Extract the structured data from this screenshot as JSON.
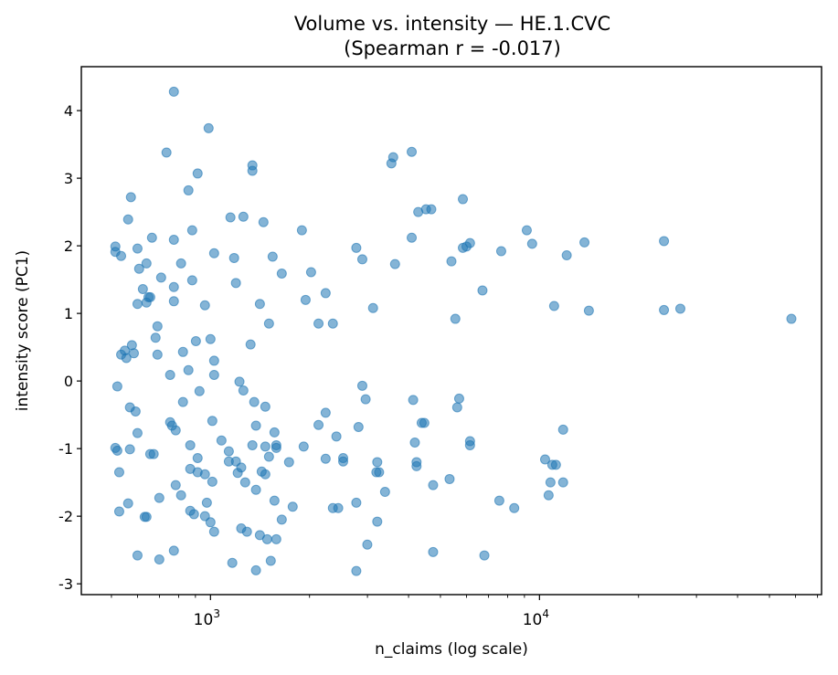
{
  "chart_data": {
    "type": "scatter",
    "title": "Volume vs. intensity — HE.1.CVC",
    "subtitle": "(Spearman r = -0.017)",
    "xlabel": "n_claims (log scale)",
    "ylabel": "intensity score (PC1)",
    "xscale": "log",
    "xlim": [
      405,
      72000
    ],
    "ylim": [
      -3.16,
      4.65
    ],
    "xticks": [
      {
        "value": 1000,
        "base": "10",
        "exp": "3"
      },
      {
        "value": 10000,
        "base": "10",
        "exp": "4"
      }
    ],
    "yticks": [
      -3,
      -2,
      -1,
      0,
      1,
      2,
      3,
      4
    ],
    "grid": false,
    "marker_color": "#1f77b4",
    "marker_alpha": 0.55,
    "points": [
      [
        514,
        1.99
      ],
      [
        514,
        1.91
      ],
      [
        535,
        1.85
      ],
      [
        514,
        -0.99
      ],
      [
        521,
        -1.03
      ],
      [
        528,
        -1.35
      ],
      [
        521,
        -0.08
      ],
      [
        528,
        -1.93
      ],
      [
        535,
        0.39
      ],
      [
        549,
        0.45
      ],
      [
        555,
        0.34
      ],
      [
        577,
        0.53
      ],
      [
        569,
        -0.39
      ],
      [
        569,
        -1.01
      ],
      [
        562,
        -1.81
      ],
      [
        573,
        2.72
      ],
      [
        562,
        2.39
      ],
      [
        585,
        0.41
      ],
      [
        592,
        -0.45
      ],
      [
        600,
        1.96
      ],
      [
        607,
        1.66
      ],
      [
        600,
        -0.77
      ],
      [
        600,
        -2.58
      ],
      [
        600,
        1.14
      ],
      [
        623,
        1.36
      ],
      [
        639,
        1.16
      ],
      [
        639,
        1.74
      ],
      [
        648,
        1.24
      ],
      [
        656,
        1.24
      ],
      [
        631,
        -2.01
      ],
      [
        639,
        -2.01
      ],
      [
        664,
        2.12
      ],
      [
        656,
        -1.08
      ],
      [
        672,
        -1.08
      ],
      [
        681,
        0.64
      ],
      [
        690,
        0.81
      ],
      [
        690,
        0.39
      ],
      [
        708,
        1.53
      ],
      [
        699,
        -1.73
      ],
      [
        699,
        -2.64
      ],
      [
        735,
        3.38
      ],
      [
        754,
        0.09
      ],
      [
        754,
        -0.61
      ],
      [
        764,
        -0.66
      ],
      [
        784,
        -0.73
      ],
      [
        774,
        1.18
      ],
      [
        774,
        2.09
      ],
      [
        774,
        4.28
      ],
      [
        774,
        -2.51
      ],
      [
        774,
        1.39
      ],
      [
        784,
        -1.54
      ],
      [
        814,
        1.74
      ],
      [
        814,
        -1.69
      ],
      [
        825,
        -0.31
      ],
      [
        825,
        0.43
      ],
      [
        857,
        0.16
      ],
      [
        857,
        2.82
      ],
      [
        868,
        -0.95
      ],
      [
        868,
        -1.3
      ],
      [
        880,
        2.23
      ],
      [
        880,
        1.49
      ],
      [
        868,
        -1.92
      ],
      [
        891,
        -1.97
      ],
      [
        903,
        0.59
      ],
      [
        914,
        3.07
      ],
      [
        914,
        -1.14
      ],
      [
        926,
        -0.15
      ],
      [
        914,
        -1.35
      ],
      [
        962,
        1.12
      ],
      [
        962,
        -1.38
      ],
      [
        962,
        -2.0
      ],
      [
        1000,
        -2.09
      ],
      [
        975,
        -1.8
      ],
      [
        1000,
        0.62
      ],
      [
        1013,
        -0.59
      ],
      [
        1026,
        1.89
      ],
      [
        1013,
        -1.49
      ],
      [
        1026,
        0.3
      ],
      [
        1026,
        0.09
      ],
      [
        1026,
        -2.23
      ],
      [
        987,
        3.74
      ],
      [
        1080,
        -0.88
      ],
      [
        1137,
        -1.19
      ],
      [
        1137,
        -1.04
      ],
      [
        1150,
        2.42
      ],
      [
        1180,
        1.82
      ],
      [
        1195,
        1.45
      ],
      [
        1165,
        -2.69
      ],
      [
        1195,
        -1.19
      ],
      [
        1210,
        -1.36
      ],
      [
        1225,
        -0.01
      ],
      [
        1240,
        -1.28
      ],
      [
        1259,
        -0.14
      ],
      [
        1240,
        -2.18
      ],
      [
        1259,
        2.43
      ],
      [
        1275,
        -1.5
      ],
      [
        1291,
        -2.23
      ],
      [
        1324,
        0.54
      ],
      [
        1341,
        3.19
      ],
      [
        1341,
        3.11
      ],
      [
        1341,
        -0.95
      ],
      [
        1358,
        -0.31
      ],
      [
        1375,
        -0.66
      ],
      [
        1375,
        -1.61
      ],
      [
        1375,
        -2.8
      ],
      [
        1413,
        -2.28
      ],
      [
        1413,
        1.14
      ],
      [
        1449,
        2.35
      ],
      [
        1468,
        -1.38
      ],
      [
        1431,
        -1.34
      ],
      [
        1468,
        -0.38
      ],
      [
        1468,
        -0.97
      ],
      [
        1487,
        -2.34
      ],
      [
        1506,
        0.85
      ],
      [
        1506,
        -1.12
      ],
      [
        1525,
        -2.66
      ],
      [
        1545,
        1.84
      ],
      [
        1565,
        -0.76
      ],
      [
        1585,
        -0.95
      ],
      [
        1585,
        -0.99
      ],
      [
        1565,
        -1.77
      ],
      [
        1585,
        -2.34
      ],
      [
        1647,
        1.59
      ],
      [
        1647,
        -2.05
      ],
      [
        1733,
        -1.2
      ],
      [
        1778,
        -1.86
      ],
      [
        1896,
        2.23
      ],
      [
        1920,
        -0.97
      ],
      [
        1946,
        1.2
      ],
      [
        2022,
        1.61
      ],
      [
        2130,
        0.85
      ],
      [
        2130,
        -0.65
      ],
      [
        2239,
        -0.47
      ],
      [
        2239,
        1.3
      ],
      [
        2239,
        -1.15
      ],
      [
        2355,
        0.85
      ],
      [
        2355,
        -1.88
      ],
      [
        2414,
        -0.82
      ],
      [
        2445,
        -1.88
      ],
      [
        2531,
        -1.19
      ],
      [
        2531,
        -1.14
      ],
      [
        2775,
        1.97
      ],
      [
        2775,
        -1.8
      ],
      [
        2894,
        1.8
      ],
      [
        2894,
        -0.07
      ],
      [
        2962,
        -0.27
      ],
      [
        2818,
        -0.68
      ],
      [
        2775,
        -2.81
      ],
      [
        2997,
        -2.42
      ],
      [
        3120,
        1.08
      ],
      [
        3193,
        -1.35
      ],
      [
        3213,
        -1.2
      ],
      [
        3213,
        -2.08
      ],
      [
        3255,
        -1.35
      ],
      [
        3393,
        -1.64
      ],
      [
        3548,
        3.22
      ],
      [
        3593,
        3.31
      ],
      [
        3639,
        1.73
      ],
      [
        4089,
        3.39
      ],
      [
        4089,
        2.12
      ],
      [
        4131,
        -0.28
      ],
      [
        4180,
        -0.91
      ],
      [
        4230,
        -1.2
      ],
      [
        4230,
        -1.26
      ],
      [
        4280,
        2.5
      ],
      [
        4385,
        -0.62
      ],
      [
        4467,
        -0.62
      ],
      [
        4520,
        2.54
      ],
      [
        4690,
        2.54
      ],
      [
        4750,
        -1.54
      ],
      [
        4750,
        -2.53
      ],
      [
        5330,
        -1.45
      ],
      [
        5400,
        1.77
      ],
      [
        5550,
        0.92
      ],
      [
        5700,
        -0.26
      ],
      [
        5623,
        -0.39
      ],
      [
        5850,
        2.69
      ],
      [
        5850,
        1.97
      ],
      [
        6000,
        1.99
      ],
      [
        6150,
        2.04
      ],
      [
        6150,
        -0.89
      ],
      [
        6150,
        -0.95
      ],
      [
        6710,
        1.34
      ],
      [
        6800,
        -2.58
      ],
      [
        7550,
        -1.77
      ],
      [
        7650,
        1.92
      ],
      [
        8380,
        -1.88
      ],
      [
        9150,
        2.23
      ],
      [
        9500,
        2.03
      ],
      [
        10400,
        -1.16
      ],
      [
        10660,
        -1.69
      ],
      [
        10800,
        -1.5
      ],
      [
        10940,
        -1.24
      ],
      [
        11220,
        -1.24
      ],
      [
        11080,
        1.11
      ],
      [
        11800,
        -1.5
      ],
      [
        11800,
        -0.72
      ],
      [
        12100,
        1.86
      ],
      [
        13700,
        2.05
      ],
      [
        14130,
        1.04
      ],
      [
        23900,
        2.07
      ],
      [
        23900,
        1.05
      ],
      [
        26800,
        1.07
      ],
      [
        58300,
        0.92
      ]
    ]
  }
}
